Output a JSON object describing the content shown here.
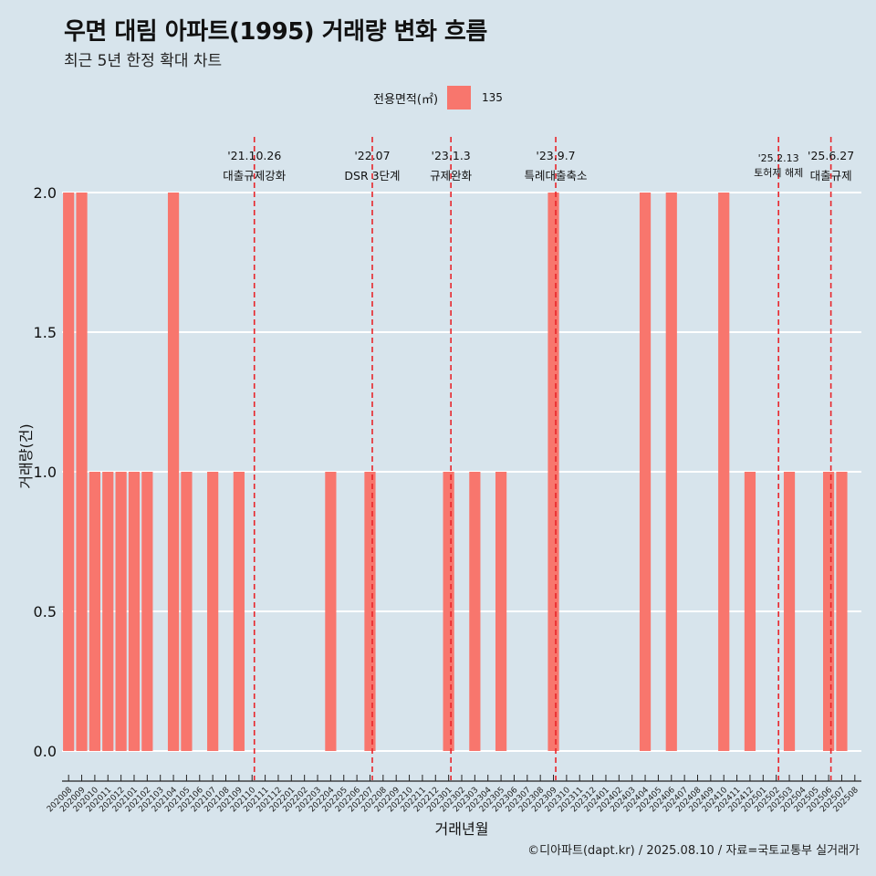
{
  "header": {
    "title": "우면 대림 아파트(1995) 거래량 변화 흐름",
    "subtitle": "최근 5년 한정 확대 차트"
  },
  "legend": {
    "title": "전용면적(㎡)",
    "label": "135",
    "color": "#f8766d"
  },
  "caption": "©디아파트(dapt.kr) / 2025.08.10 / 자료=국토교통부 실거래가",
  "chart_data": {
    "type": "bar",
    "xlabel": "거래년월",
    "ylabel": "거래량(건)",
    "ylim": [
      0,
      2.0
    ],
    "yticks": [
      "0.0",
      "0.5",
      "1.0",
      "1.5",
      "2.0"
    ],
    "grid": true,
    "legend_position": "top",
    "bar_color": "#f8766d",
    "categories": [
      "202008",
      "202009",
      "202010",
      "202011",
      "202012",
      "202101",
      "202102",
      "202103",
      "202104",
      "202105",
      "202106",
      "202107",
      "202108",
      "202109",
      "202110",
      "202111",
      "202112",
      "202201",
      "202202",
      "202203",
      "202204",
      "202205",
      "202206",
      "202207",
      "202208",
      "202209",
      "202210",
      "202211",
      "202212",
      "202301",
      "202302",
      "202303",
      "202304",
      "202305",
      "202306",
      "202307",
      "202308",
      "202309",
      "202310",
      "202311",
      "202312",
      "202401",
      "202402",
      "202403",
      "202404",
      "202405",
      "202406",
      "202407",
      "202408",
      "202409",
      "202410",
      "202411",
      "202412",
      "202501",
      "202502",
      "202503",
      "202504",
      "202505",
      "202506",
      "202507",
      "202508"
    ],
    "values": [
      2,
      2,
      1,
      1,
      1,
      1,
      1,
      0,
      2,
      1,
      0,
      1,
      0,
      1,
      0,
      0,
      0,
      0,
      0,
      0,
      1,
      0,
      0,
      1,
      0,
      0,
      0,
      0,
      0,
      1,
      0,
      1,
      0,
      1,
      0,
      0,
      0,
      2,
      0,
      0,
      0,
      0,
      0,
      0,
      2,
      0,
      2,
      0,
      0,
      0,
      2,
      0,
      1,
      0,
      0,
      1,
      0,
      0,
      1,
      1,
      0
    ],
    "annotations": [
      {
        "date": "'21.10.26",
        "text": "대출규제강화",
        "after": "202110"
      },
      {
        "date": "'22.07",
        "text": "DSR 3단계",
        "after": "202207"
      },
      {
        "date": "'23.1.3",
        "text": "규제완화",
        "after": "202301"
      },
      {
        "date": "'23.9.7",
        "text": "특례대출축소",
        "after": "202309"
      },
      {
        "date": "'25.2.13",
        "text": "토허제 해제",
        "after": "202502"
      },
      {
        "date": "'25.6.27",
        "text": "대출규제",
        "after": "202506"
      }
    ]
  }
}
